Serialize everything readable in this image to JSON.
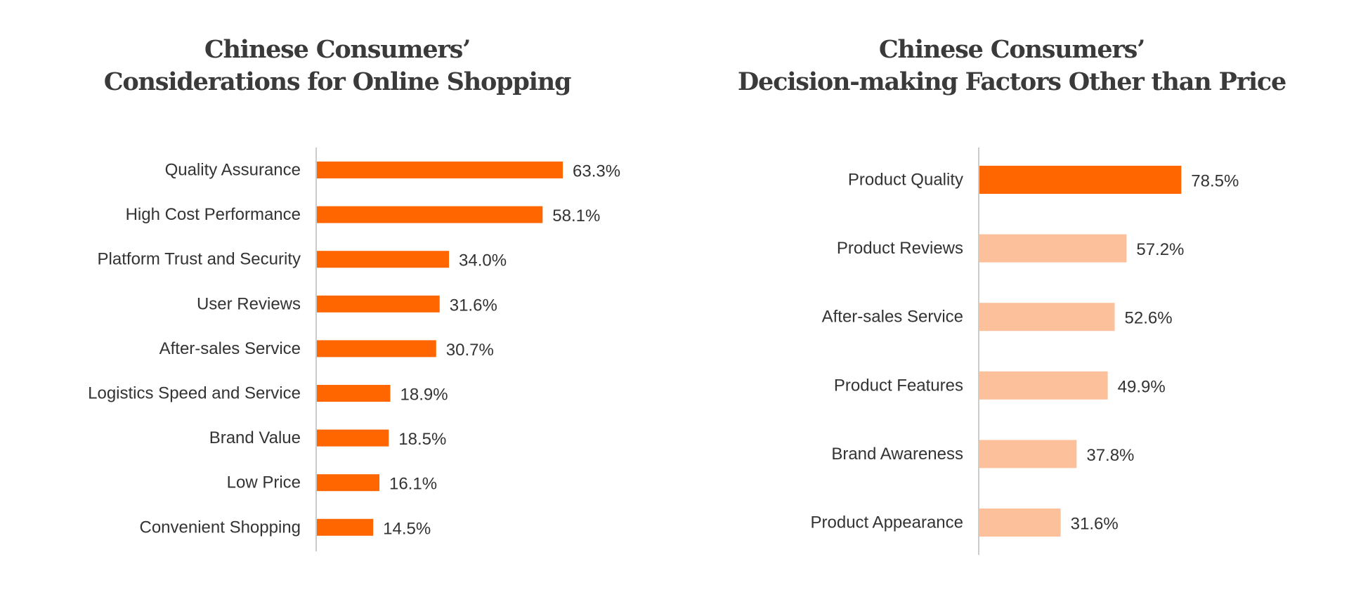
{
  "chart_data": [
    {
      "type": "bar",
      "orientation": "horizontal",
      "title_lines": [
        "Chinese Consumers’",
        "Considerations for Online Shopping"
      ],
      "categories": [
        "Quality Assurance",
        "High Cost Performance",
        "Platform Trust and Security",
        "User Reviews",
        "After-sales Service",
        "Logistics Speed and Service",
        "Brand Value",
        "Low Price",
        "Convenient Shopping"
      ],
      "values": [
        63.3,
        58.1,
        34.0,
        31.6,
        30.7,
        18.9,
        18.5,
        16.1,
        14.5
      ],
      "value_labels": [
        "63.3%",
        "58.1%",
        "34.0%",
        "31.6%",
        "30.7%",
        "18.9%",
        "18.5%",
        "16.1%",
        "14.5%"
      ],
      "bar_colors": [
        "#ff6600",
        "#ff6600",
        "#ff6600",
        "#ff6600",
        "#ff6600",
        "#ff6600",
        "#ff6600",
        "#ff6600",
        "#ff6600"
      ],
      "axis_color": "#cccccc",
      "xlim": [
        0,
        100
      ],
      "grid": false,
      "legend": "none"
    },
    {
      "type": "bar",
      "orientation": "horizontal",
      "title_lines": [
        "Chinese Consumers’",
        "Decision-making Factors Other than Price"
      ],
      "categories": [
        "Product Quality",
        "Product Reviews",
        "After-sales Service",
        "Product Features",
        "Brand Awareness",
        "Product Appearance"
      ],
      "values": [
        78.5,
        57.2,
        52.6,
        49.9,
        37.8,
        31.6
      ],
      "value_labels": [
        "78.5%",
        "57.2%",
        "52.6%",
        "49.9%",
        "37.8%",
        "31.6%"
      ],
      "bar_colors": [
        "#ff6600",
        "#fcc09b",
        "#fcc09b",
        "#fcc09b",
        "#fcc09b",
        "#fcc09b"
      ],
      "axis_color": "#cccccc",
      "xlim": [
        0,
        100
      ],
      "grid": false,
      "legend": "none"
    }
  ]
}
